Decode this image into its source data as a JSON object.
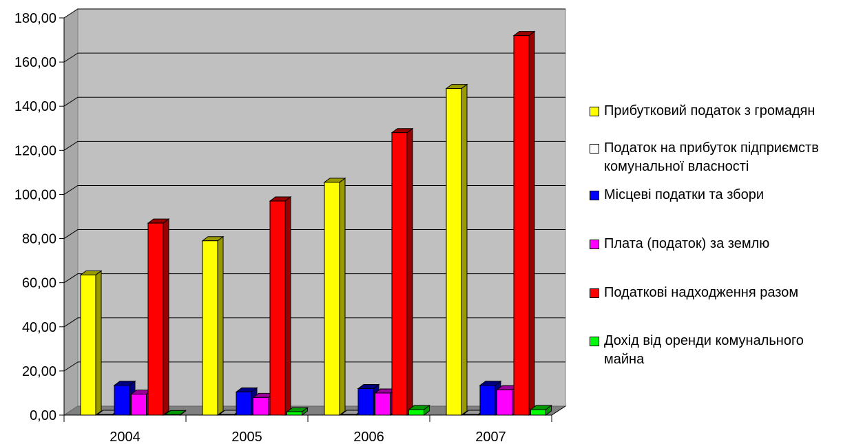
{
  "chart_data": {
    "type": "bar",
    "title": "",
    "xlabel": "",
    "ylabel": "",
    "categories": [
      "2004",
      "2005",
      "2006",
      "2007"
    ],
    "ylim": [
      0,
      180
    ],
    "yticks": [
      "0,00",
      "20,00",
      "40,00",
      "60,00",
      "80,00",
      "100,00",
      "120,00",
      "140,00",
      "160,00",
      "180,00"
    ],
    "grid": true,
    "legend_position": "right",
    "series": [
      {
        "name": "Прибутковий податок з громадян",
        "color": "#ffff00",
        "side": "#999900",
        "values": [
          63.5,
          79.0,
          105.5,
          148.0
        ]
      },
      {
        "name": "Податок на прибуток підприємств комунальної власності",
        "color": "#ffffff",
        "side": "#999999",
        "values": [
          0.3,
          0.3,
          0.3,
          0.3
        ]
      },
      {
        "name": "Місцеві податки та збори",
        "color": "#0000ff",
        "side": "#000080",
        "values": [
          13.5,
          10.5,
          12.0,
          13.5
        ]
      },
      {
        "name": "Плата (податок) за землю",
        "color": "#ff00ff",
        "side": "#990099",
        "values": [
          9.5,
          8.0,
          10.0,
          11.5
        ]
      },
      {
        "name": "Податкові надходження разом",
        "color": "#ff0000",
        "side": "#990000",
        "values": [
          87.0,
          97.0,
          128.0,
          172.0
        ]
      },
      {
        "name": "Дохід від оренди комунального майна",
        "color": "#00ff00",
        "side": "#009900",
        "values": [
          0.2,
          1.5,
          2.5,
          2.5
        ]
      }
    ]
  }
}
